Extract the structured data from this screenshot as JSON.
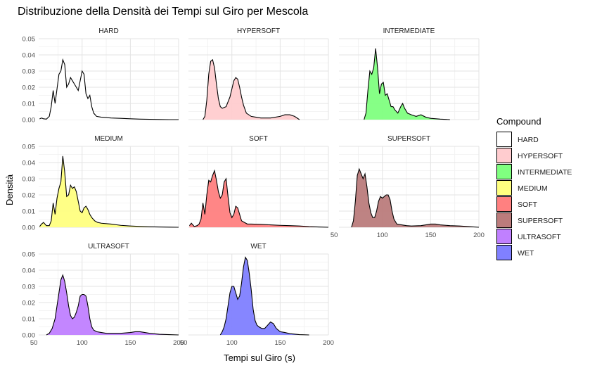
{
  "chart_data": {
    "type": "area",
    "title": "Distribuzione della Densità dei Tempi sul Giro per Mescola",
    "xlabel": "Tempi sul Giro (s)",
    "ylabel": "Densità",
    "xlim": [
      55,
      200
    ],
    "ylim": [
      0,
      0.05
    ],
    "x_ticks": [
      50,
      100,
      150,
      200
    ],
    "y_ticks": [
      "0.00",
      "0.01",
      "0.02",
      "0.03",
      "0.04",
      "0.05"
    ],
    "x_tick_labels": [
      "50",
      "100",
      "150",
      "200"
    ],
    "grid": true,
    "legend": {
      "title": "Compound",
      "position": "right"
    },
    "facets": [
      "HARD",
      "HYPERSOFT",
      "INTERMEDIATE",
      "MEDIUM",
      "SOFT",
      "SUPERSOFT",
      "ULTRASOFT",
      "WET"
    ],
    "series": [
      {
        "name": "HARD",
        "color": "#ffffff",
        "x": [
          56,
          58,
          60,
          63,
          66,
          68,
          70,
          72,
          74,
          76,
          78,
          80,
          82,
          84,
          86,
          88,
          90,
          92,
          94,
          96,
          98,
          100,
          102,
          104,
          106,
          108,
          110,
          112,
          115,
          120,
          130,
          140,
          150,
          160,
          170,
          180,
          190,
          200
        ],
        "y": [
          0.0005,
          0.001,
          0.0005,
          0.0003,
          0.002,
          0.008,
          0.018,
          0.01,
          0.019,
          0.028,
          0.03,
          0.037,
          0.034,
          0.02,
          0.022,
          0.026,
          0.024,
          0.022,
          0.02,
          0.018,
          0.024,
          0.03,
          0.028,
          0.016,
          0.013,
          0.015,
          0.008,
          0.004,
          0.002,
          0.0015,
          0.001,
          0.0008,
          0.0005,
          0.0003,
          0.0002,
          0.0001,
          0.0,
          0.0
        ]
      },
      {
        "name": "HYPERSOFT",
        "color": "#ffcccf",
        "x": [
          70,
          72,
          74,
          76,
          78,
          80,
          82,
          84,
          86,
          88,
          90,
          94,
          98,
          102,
          104,
          106,
          108,
          110,
          112,
          115,
          120,
          125,
          130,
          140,
          150,
          155,
          160,
          165,
          170
        ],
        "y": [
          0.0,
          0.002,
          0.012,
          0.028,
          0.036,
          0.037,
          0.032,
          0.022,
          0.013,
          0.008,
          0.007,
          0.008,
          0.014,
          0.024,
          0.026,
          0.025,
          0.02,
          0.014,
          0.009,
          0.004,
          0.002,
          0.0015,
          0.001,
          0.001,
          0.002,
          0.003,
          0.003,
          0.002,
          0.0
        ]
      },
      {
        "name": "INTERMEDIATE",
        "color": "#80ff80",
        "x": [
          81,
          83,
          85,
          87,
          89,
          91,
          93,
          95,
          97,
          99,
          101,
          103,
          105,
          107,
          109,
          111,
          113,
          116,
          119,
          121,
          123,
          126,
          130,
          135,
          140,
          145,
          150,
          160,
          170
        ],
        "y": [
          0.0,
          0.004,
          0.018,
          0.03,
          0.028,
          0.032,
          0.044,
          0.032,
          0.016,
          0.022,
          0.023,
          0.015,
          0.016,
          0.012,
          0.008,
          0.008,
          0.006,
          0.004,
          0.008,
          0.01,
          0.007,
          0.004,
          0.003,
          0.002,
          0.003,
          0.0015,
          0.0008,
          0.0003,
          0.0
        ]
      },
      {
        "name": "MEDIUM",
        "color": "#ffff80",
        "x": [
          56,
          58,
          60,
          63,
          66,
          68,
          70,
          72,
          74,
          76,
          78,
          80,
          82,
          84,
          86,
          88,
          90,
          92,
          94,
          96,
          98,
          100,
          102,
          104,
          106,
          108,
          110,
          113,
          116,
          120,
          130,
          140,
          150,
          160,
          170,
          180,
          190,
          200
        ],
        "y": [
          0.0005,
          0.002,
          0.003,
          0.001,
          0.001,
          0.004,
          0.015,
          0.008,
          0.018,
          0.024,
          0.028,
          0.044,
          0.034,
          0.019,
          0.02,
          0.026,
          0.024,
          0.025,
          0.022,
          0.016,
          0.01,
          0.009,
          0.012,
          0.013,
          0.011,
          0.008,
          0.006,
          0.004,
          0.003,
          0.0025,
          0.002,
          0.0012,
          0.0008,
          0.0005,
          0.0003,
          0.0002,
          0.0001,
          0.0
        ]
      },
      {
        "name": "SOFT",
        "color": "#ff8080",
        "x": [
          56,
          58,
          61,
          64,
          66,
          68,
          70,
          72,
          74,
          76,
          78,
          80,
          82,
          84,
          86,
          88,
          90,
          92,
          94,
          96,
          98,
          100,
          102,
          104,
          106,
          108,
          110,
          113,
          116,
          120,
          130,
          140,
          150,
          160,
          170,
          180,
          190,
          200
        ],
        "y": [
          0.001,
          0.0025,
          0.0005,
          0.001,
          0.002,
          0.005,
          0.015,
          0.008,
          0.02,
          0.029,
          0.028,
          0.032,
          0.035,
          0.029,
          0.022,
          0.018,
          0.02,
          0.028,
          0.03,
          0.019,
          0.009,
          0.006,
          0.008,
          0.013,
          0.012,
          0.008,
          0.004,
          0.003,
          0.002,
          0.002,
          0.0018,
          0.0015,
          0.0012,
          0.001,
          0.0008,
          0.0004,
          0.0002,
          0.0
        ]
      },
      {
        "name": "SUPERSOFT",
        "color": "#bb7c7c",
        "x": [
          68,
          70,
          72,
          74,
          76,
          78,
          80,
          82,
          84,
          86,
          88,
          90,
          92,
          94,
          96,
          98,
          100,
          102,
          104,
          106,
          108,
          110,
          112,
          115,
          120,
          125,
          130,
          140,
          150,
          155,
          160,
          170,
          180,
          190,
          200
        ],
        "y": [
          0.0,
          0.004,
          0.016,
          0.032,
          0.036,
          0.033,
          0.03,
          0.033,
          0.025,
          0.015,
          0.009,
          0.006,
          0.006,
          0.01,
          0.016,
          0.019,
          0.018,
          0.019,
          0.02,
          0.02,
          0.017,
          0.01,
          0.005,
          0.002,
          0.0015,
          0.001,
          0.0008,
          0.001,
          0.002,
          0.002,
          0.0015,
          0.001,
          0.0008,
          0.0004,
          0.0
        ]
      },
      {
        "name": "ULTRASOFT",
        "color": "#c080ff",
        "x": [
          63,
          66,
          69,
          72,
          75,
          78,
          80,
          82,
          84,
          86,
          88,
          90,
          92,
          94,
          96,
          98,
          100,
          102,
          104,
          106,
          108,
          110,
          112,
          115,
          120,
          125,
          130,
          140,
          150,
          155,
          160,
          165,
          170,
          180,
          190,
          200
        ],
        "y": [
          0.0,
          0.001,
          0.004,
          0.01,
          0.022,
          0.034,
          0.037,
          0.033,
          0.026,
          0.018,
          0.012,
          0.01,
          0.011,
          0.014,
          0.018,
          0.024,
          0.025,
          0.025,
          0.024,
          0.018,
          0.01,
          0.005,
          0.003,
          0.002,
          0.0015,
          0.001,
          0.001,
          0.001,
          0.0015,
          0.002,
          0.002,
          0.0015,
          0.001,
          0.0004,
          0.0002,
          0.0
        ]
      },
      {
        "name": "WET",
        "color": "#8080ff",
        "x": [
          88,
          90,
          92,
          94,
          96,
          98,
          100,
          102,
          104,
          106,
          108,
          110,
          112,
          114,
          116,
          118,
          120,
          122,
          124,
          126,
          128,
          131,
          134,
          137,
          140,
          143,
          146,
          150,
          155,
          160,
          170,
          180
        ],
        "y": [
          0.0,
          0.002,
          0.005,
          0.01,
          0.018,
          0.026,
          0.03,
          0.03,
          0.026,
          0.022,
          0.024,
          0.032,
          0.042,
          0.048,
          0.046,
          0.038,
          0.028,
          0.016,
          0.009,
          0.006,
          0.005,
          0.004,
          0.004,
          0.006,
          0.008,
          0.007,
          0.004,
          0.002,
          0.0015,
          0.0008,
          0.0002,
          0.0
        ]
      }
    ]
  }
}
